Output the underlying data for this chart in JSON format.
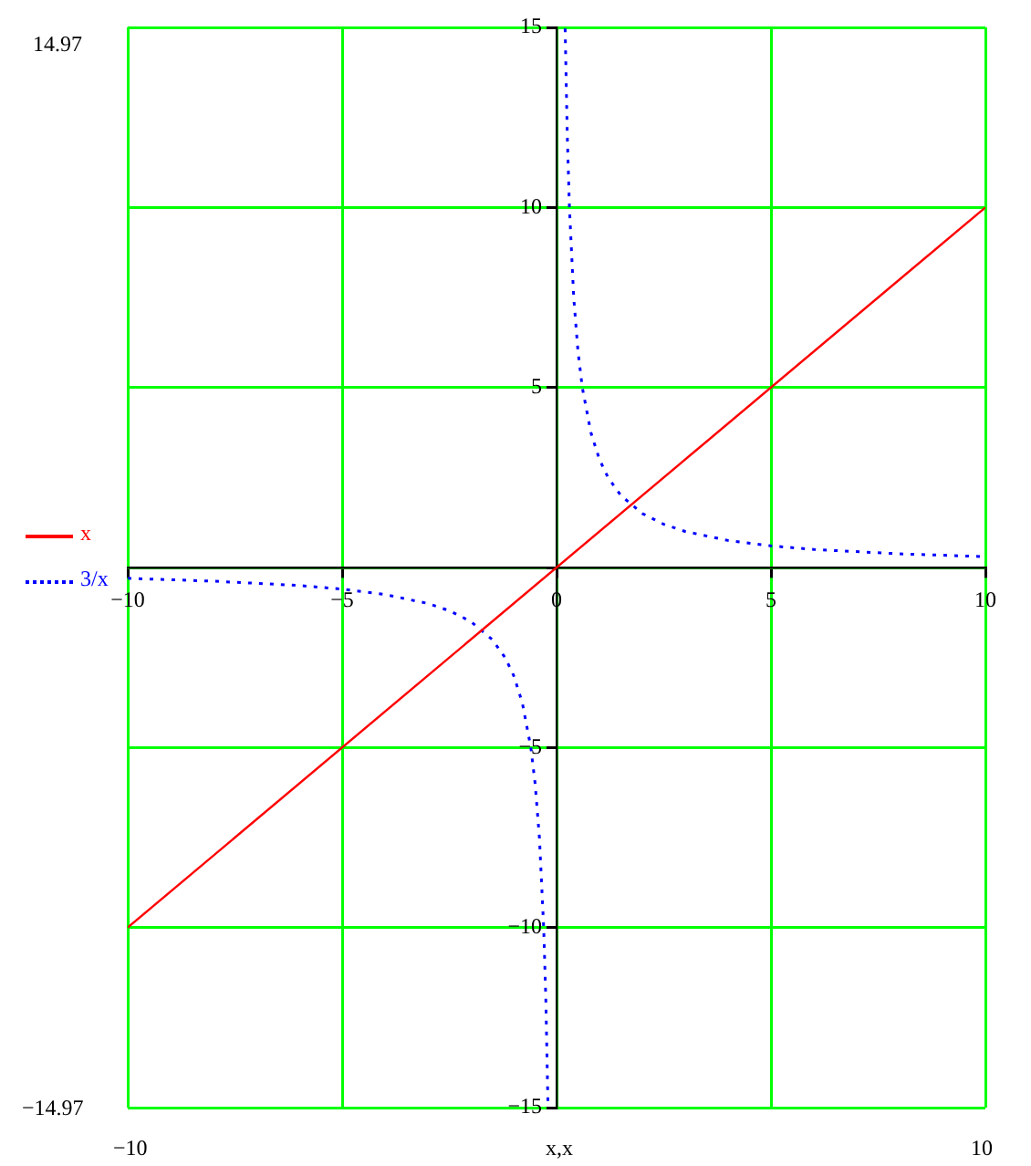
{
  "chart_data": {
    "type": "line",
    "xlabel": "x,x",
    "annotations": [
      "14.97",
      "−14.97",
      "−10",
      "10"
    ],
    "xlim": [
      -10,
      10
    ],
    "xticks": [
      -10,
      -5,
      0,
      5,
      10
    ],
    "ylim": [
      -15,
      15
    ],
    "yticks": [
      -15,
      -10,
      -5,
      {
        "value": 0,
        "label": null
      },
      5,
      10,
      15
    ],
    "grid": true,
    "legend": "left",
    "marker": "none",
    "series": [
      {
        "name": "x",
        "color": "#ff0000",
        "line_style": "solid",
        "x": [
          -10,
          10
        ],
        "values": [
          -10,
          10
        ]
      },
      {
        "name": "3/x",
        "color": "#0000ff",
        "line_style": "dotted",
        "x": [
          -10,
          -8,
          -6,
          -5,
          -4,
          -3,
          -2.5,
          -2,
          -1.5,
          -1.2,
          -1,
          -0.8,
          -0.6,
          -0.5,
          -0.4,
          -0.3,
          -0.25,
          -0.2,
          0,
          0.2,
          0.25,
          0.3,
          0.4,
          0.5,
          0.6,
          0.8,
          1,
          1.2,
          1.5,
          2,
          2.5,
          3,
          4,
          5,
          6,
          8,
          10
        ],
        "values": [
          -0.3,
          -0.38,
          -0.5,
          -0.6,
          -0.75,
          -1,
          -1.2,
          -1.5,
          -2,
          -2.5,
          -3,
          -3.75,
          -5,
          -6,
          -7.5,
          -10,
          -12,
          -14.97,
          null,
          14.97,
          12,
          10,
          7.5,
          6,
          5,
          3.75,
          3,
          2.5,
          2,
          1.5,
          1.2,
          1,
          0.75,
          0.6,
          0.5,
          0.38,
          0.3
        ]
      }
    ]
  }
}
